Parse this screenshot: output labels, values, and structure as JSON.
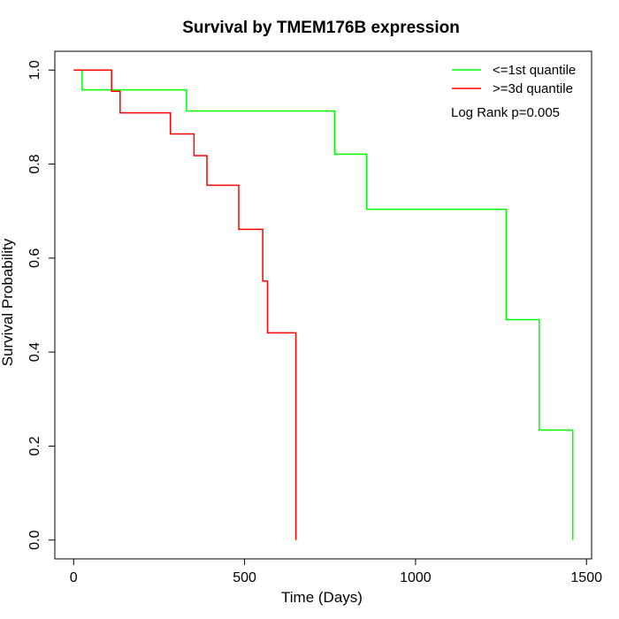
{
  "chart_data": {
    "type": "line",
    "step": true,
    "title": "Survival by TMEM176B expression",
    "xlabel": "Time (Days)",
    "ylabel": "Survival Probability",
    "xlim": [
      -55,
      1515
    ],
    "ylim": [
      -0.04,
      1.04
    ],
    "x_ticks": [
      0,
      500,
      1000,
      1500
    ],
    "y_ticks": [
      0.0,
      0.2,
      0.4,
      0.6,
      0.8,
      1.0
    ],
    "x_tick_labels": [
      "0",
      "500",
      "1000",
      "1500"
    ],
    "y_tick_labels": [
      "0.0",
      "0.2",
      "0.4",
      "0.6",
      "0.8",
      "1.0"
    ],
    "grid": false,
    "legend_position": "top-right",
    "annotation": "Log Rank p=0.005",
    "series": [
      {
        "name": "<=1st quantile",
        "color": "#00ff00",
        "points": [
          [
            0,
            1.0
          ],
          [
            25,
            1.0
          ],
          [
            25,
            0.958
          ],
          [
            330,
            0.958
          ],
          [
            330,
            0.913
          ],
          [
            763,
            0.913
          ],
          [
            763,
            0.821
          ],
          [
            857,
            0.821
          ],
          [
            857,
            0.704
          ],
          [
            1265,
            0.704
          ],
          [
            1265,
            0.469
          ],
          [
            1362,
            0.469
          ],
          [
            1362,
            0.234
          ],
          [
            1460,
            0.234
          ],
          [
            1460,
            0.0
          ]
        ]
      },
      {
        "name": ">=3d quantile",
        "color": "#ff0000",
        "points": [
          [
            0,
            1.0
          ],
          [
            111,
            1.0
          ],
          [
            111,
            0.955
          ],
          [
            136,
            0.955
          ],
          [
            136,
            0.909
          ],
          [
            283,
            0.909
          ],
          [
            283,
            0.864
          ],
          [
            352,
            0.864
          ],
          [
            352,
            0.818
          ],
          [
            390,
            0.818
          ],
          [
            390,
            0.755
          ],
          [
            483,
            0.755
          ],
          [
            483,
            0.661
          ],
          [
            553,
            0.661
          ],
          [
            553,
            0.551
          ],
          [
            567,
            0.551
          ],
          [
            567,
            0.441
          ],
          [
            650,
            0.441
          ],
          [
            650,
            0.0
          ]
        ]
      }
    ]
  }
}
